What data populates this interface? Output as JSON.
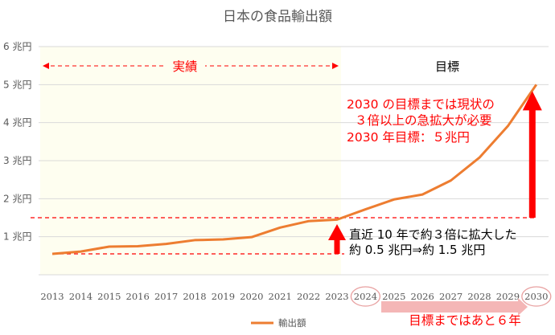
{
  "chart_data": {
    "type": "line",
    "title": "日本の食品輸出額",
    "categories": [
      "2013",
      "2014",
      "2015",
      "2016",
      "2017",
      "2018",
      "2019",
      "2020",
      "2021",
      "2022",
      "2023",
      "2024",
      "2025",
      "2026",
      "2027",
      "2028",
      "2029",
      "2030"
    ],
    "series": [
      {
        "name": "輸出額",
        "color": "#ed7d31",
        "values": [
          0.55,
          0.61,
          0.74,
          0.75,
          0.81,
          0.91,
          0.93,
          0.99,
          1.24,
          1.41,
          1.45,
          1.72,
          1.98,
          2.11,
          2.48,
          3.08,
          3.91,
          5.0
        ]
      }
    ],
    "yticks": [
      "6 兆円",
      "5 兆円",
      "4 兆円",
      "3 兆円",
      "2 兆円",
      "1 兆円"
    ],
    "ylim": [
      0,
      6
    ],
    "grid": true,
    "legend_position": "bottom",
    "highlighted_categories": [
      "2024",
      "2030"
    ],
    "annotations": {
      "actual_label": "実績",
      "target_label": "目標",
      "goal_line1": "2030 の目標までは現状の",
      "goal_line2": "３倍以上の急拡大が必要",
      "goal_line3": "2030 年目標：５兆円",
      "recent_line1": "直近 10 年で約３倍に拡大した",
      "recent_line2": "約 0.5 兆円⇒約 1.5 兆円",
      "years_left": "目標まではあと６年"
    },
    "reference_levels": [
      0.55,
      1.5
    ],
    "colors": {
      "highlight_bg": "#fefef0",
      "arrow": "#ff0000",
      "years_arrow": "#f4b6b6",
      "circle": "#e8a0a0",
      "line": "#ed7d31"
    }
  }
}
